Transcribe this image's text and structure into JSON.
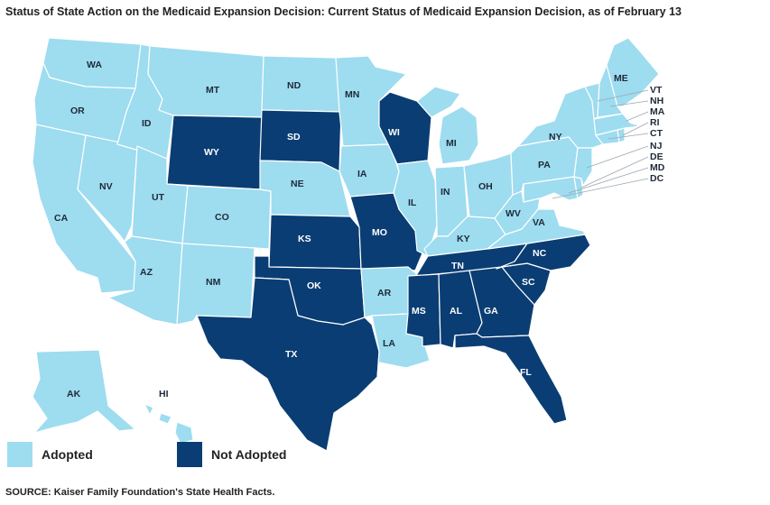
{
  "title": "Status of State Action on the Medicaid Expansion Decision: Current Status of Medicaid Expansion Decision, as of February 13",
  "source": "SOURCE: Kaiser Family Foundation's State Health Facts.",
  "legend": {
    "adopted": "Adopted",
    "not_adopted": "Not Adopted"
  },
  "colors": {
    "adopted": "#9edcf0",
    "not_adopted": "#0a3d73",
    "border": "#ffffff"
  },
  "states": {
    "WA": {
      "label": "WA",
      "status": "adopted"
    },
    "OR": {
      "label": "OR",
      "status": "adopted"
    },
    "CA": {
      "label": "CA",
      "status": "adopted"
    },
    "NV": {
      "label": "NV",
      "status": "adopted"
    },
    "ID": {
      "label": "ID",
      "status": "adopted"
    },
    "MT": {
      "label": "MT",
      "status": "adopted"
    },
    "WY": {
      "label": "WY",
      "status": "not_adopted"
    },
    "UT": {
      "label": "UT",
      "status": "adopted"
    },
    "AZ": {
      "label": "AZ",
      "status": "adopted"
    },
    "CO": {
      "label": "CO",
      "status": "adopted"
    },
    "NM": {
      "label": "NM",
      "status": "adopted"
    },
    "ND": {
      "label": "ND",
      "status": "adopted"
    },
    "SD": {
      "label": "SD",
      "status": "not_adopted"
    },
    "NE": {
      "label": "NE",
      "status": "adopted"
    },
    "KS": {
      "label": "KS",
      "status": "not_adopted"
    },
    "OK": {
      "label": "OK",
      "status": "not_adopted"
    },
    "TX": {
      "label": "TX",
      "status": "not_adopted"
    },
    "MN": {
      "label": "MN",
      "status": "adopted"
    },
    "IA": {
      "label": "IA",
      "status": "adopted"
    },
    "MO": {
      "label": "MO",
      "status": "not_adopted"
    },
    "AR": {
      "label": "AR",
      "status": "adopted"
    },
    "LA": {
      "label": "LA",
      "status": "adopted"
    },
    "WI": {
      "label": "WI",
      "status": "not_adopted"
    },
    "IL": {
      "label": "IL",
      "status": "adopted"
    },
    "MI": {
      "label": "MI",
      "status": "adopted"
    },
    "IN": {
      "label": "IN",
      "status": "adopted"
    },
    "OH": {
      "label": "OH",
      "status": "adopted"
    },
    "KY": {
      "label": "KY",
      "status": "adopted"
    },
    "TN": {
      "label": "TN",
      "status": "not_adopted"
    },
    "MS": {
      "label": "MS",
      "status": "not_adopted"
    },
    "AL": {
      "label": "AL",
      "status": "not_adopted"
    },
    "GA": {
      "label": "GA",
      "status": "not_adopted"
    },
    "FL": {
      "label": "FL",
      "status": "not_adopted"
    },
    "SC": {
      "label": "SC",
      "status": "not_adopted"
    },
    "NC": {
      "label": "NC",
      "status": "not_adopted"
    },
    "VA": {
      "label": "VA",
      "status": "adopted"
    },
    "WV": {
      "label": "WV",
      "status": "adopted"
    },
    "PA": {
      "label": "PA",
      "status": "adopted"
    },
    "NY": {
      "label": "NY",
      "status": "adopted"
    },
    "ME": {
      "label": "ME",
      "status": "adopted"
    },
    "NE_NEW": {
      "label": "",
      "status": "adopted"
    },
    "VT": {
      "label": "VT",
      "status": "adopted"
    },
    "NH": {
      "label": "NH",
      "status": "adopted"
    },
    "MA": {
      "label": "MA",
      "status": "adopted"
    },
    "RI": {
      "label": "RI",
      "status": "adopted"
    },
    "CT": {
      "label": "CT",
      "status": "adopted"
    },
    "NJ": {
      "label": "NJ",
      "status": "adopted"
    },
    "DE": {
      "label": "DE",
      "status": "adopted"
    },
    "MD": {
      "label": "MD",
      "status": "adopted"
    },
    "DC": {
      "label": "DC",
      "status": "adopted"
    },
    "AK": {
      "label": "AK",
      "status": "adopted"
    },
    "HI": {
      "label": "HI",
      "status": "adopted"
    }
  }
}
